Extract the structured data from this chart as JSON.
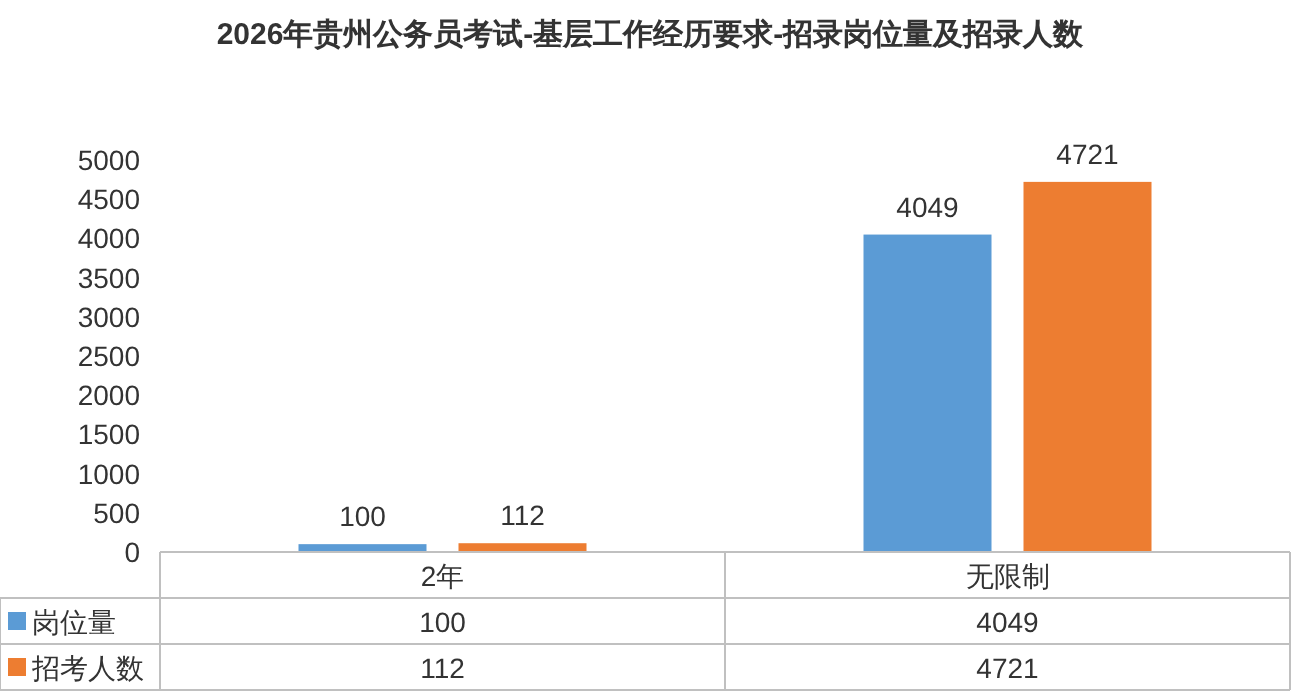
{
  "chart_data": {
    "type": "bar",
    "title": "2026年贵州公务员考试-基层工作经历要求-招录岗位量及招录人数",
    "categories": [
      "2年",
      "无限制"
    ],
    "series": [
      {
        "name": "岗位量",
        "color": "#5b9bd5",
        "values": [
          100,
          4049
        ]
      },
      {
        "name": "招考人数",
        "color": "#ed7d31",
        "values": [
          112,
          4721
        ]
      }
    ],
    "ylim": [
      0,
      5000
    ],
    "yticks": [
      0,
      500,
      1000,
      1500,
      2000,
      2500,
      3000,
      3500,
      4000,
      4500,
      5000
    ],
    "legend": "bottom",
    "data_labels": true,
    "annotations": [
      "100",
      "4049",
      "112",
      "4721"
    ]
  }
}
